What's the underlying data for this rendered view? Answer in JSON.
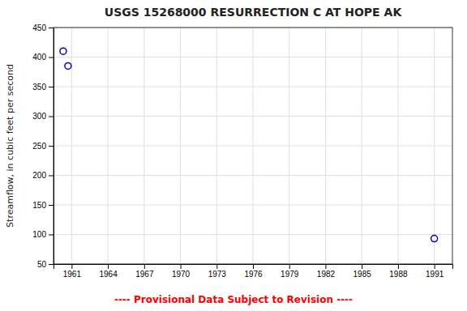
{
  "chart_data": {
    "type": "scatter",
    "title": "USGS 15268000 RESURRECTION C AT HOPE AK",
    "y_label": "Streamflow, in cubic feet per second",
    "x": [
      1960.3,
      1960.7,
      1991.0
    ],
    "values": [
      410,
      385,
      93
    ],
    "color": "#0000cc",
    "marker": "circle",
    "xlim": [
      1959.5,
      1992.5
    ],
    "ylim": [
      50,
      450
    ],
    "xticks": [
      1961,
      1964,
      1967,
      1970,
      1973,
      1976,
      1979,
      1982,
      1985,
      1988,
      1991
    ],
    "yticks": [
      50,
      100,
      150,
      200,
      250,
      300,
      350,
      400,
      450
    ],
    "grid": true,
    "annotations": [
      {
        "text": "---- Provisional Data Subject to Revision ----",
        "color": "#ff0000"
      }
    ]
  }
}
